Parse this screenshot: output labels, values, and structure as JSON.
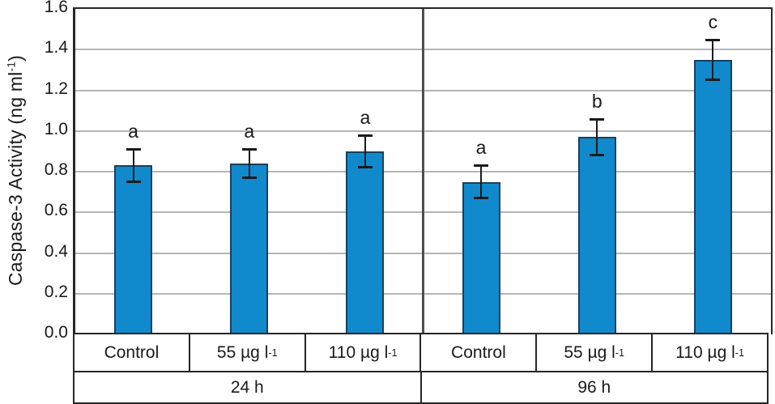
{
  "chart_data": {
    "type": "bar",
    "title": "",
    "ylabel_prefix": "Caspase-3 Activity (ng ml",
    "ylabel_sup": "-1",
    "ylabel_suffix": ")",
    "ylim": [
      0,
      1.6
    ],
    "ytick_step": 0.2,
    "yticks": [
      "0.0",
      "0.2",
      "0.4",
      "0.6",
      "0.8",
      "1.0",
      "1.2",
      "1.4",
      "1.6"
    ],
    "grid": true,
    "legend": "none",
    "groups": [
      {
        "time_label": "24 h",
        "bars": [
          {
            "label_pre": "Control",
            "label_sup": "",
            "value": 0.83,
            "error": 0.08,
            "sig": "a"
          },
          {
            "label_pre": "55 µg l",
            "label_sup": "-1",
            "value": 0.84,
            "error": 0.07,
            "sig": "a"
          },
          {
            "label_pre": "110 µg l",
            "label_sup": "-1",
            "value": 0.9,
            "error": 0.08,
            "sig": "a"
          }
        ]
      },
      {
        "time_label": "96 h",
        "bars": [
          {
            "label_pre": "Control",
            "label_sup": "",
            "value": 0.75,
            "error": 0.08,
            "sig": "a"
          },
          {
            "label_pre": "55 µg l",
            "label_sup": "-1",
            "value": 0.97,
            "error": 0.09,
            "sig": "b"
          },
          {
            "label_pre": "110 µg l",
            "label_sup": "-1",
            "value": 1.35,
            "error": 0.1,
            "sig": "c"
          }
        ]
      }
    ],
    "colors": {
      "bar_fill": "#118acd",
      "bar_border": "#17405c",
      "grid": "#b5b5b5",
      "axis": "#262626",
      "group_divider": "#4d4d4d",
      "error_bar": "#1a1a1a",
      "text": "#1a1a1a"
    }
  }
}
